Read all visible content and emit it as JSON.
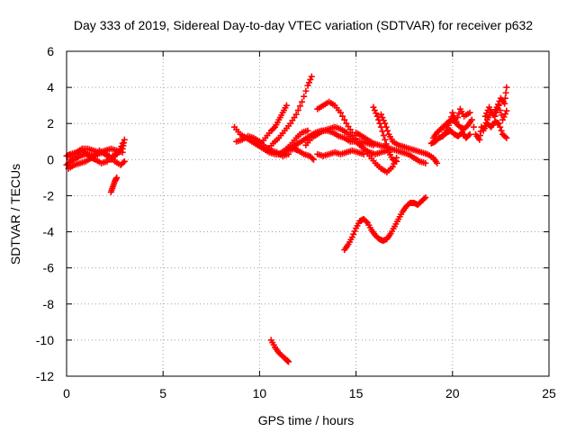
{
  "chart_data": {
    "type": "scatter",
    "title": "Day 333 of 2019, Sidereal Day-to-day VTEC variation (SDTVAR) for receiver p632",
    "xlabel": "GPS time / hours",
    "ylabel": "SDTVAR / TECUs",
    "xlim": [
      0,
      25
    ],
    "ylim": [
      -12,
      6
    ],
    "xticks": [
      0,
      5,
      10,
      15,
      20,
      25
    ],
    "yticks": [
      -12,
      -10,
      -8,
      -6,
      -4,
      -2,
      0,
      2,
      4,
      6
    ],
    "grid": true,
    "marker": "+",
    "color": "#ff0000",
    "tracks": [
      [
        [
          0.0,
          -0.3
        ],
        [
          0.2,
          -0.1
        ],
        [
          0.4,
          0.0
        ],
        [
          0.7,
          0.2
        ],
        [
          1.0,
          0.3
        ],
        [
          1.3,
          0.1
        ],
        [
          1.5,
          0.0
        ],
        [
          1.8,
          -0.2
        ],
        [
          2.1,
          -0.1
        ],
        [
          2.4,
          0.2
        ],
        [
          2.7,
          0.4
        ],
        [
          2.9,
          0.9
        ]
      ],
      [
        [
          0.0,
          0.2
        ],
        [
          0.2,
          0.3
        ],
        [
          0.5,
          0.4
        ],
        [
          0.8,
          0.6
        ],
        [
          1.1,
          0.6
        ],
        [
          1.4,
          0.5
        ],
        [
          1.7,
          0.4
        ],
        [
          2.0,
          0.5
        ],
        [
          2.3,
          0.6
        ],
        [
          2.6,
          0.5
        ],
        [
          2.9,
          0.4
        ]
      ],
      [
        [
          0.1,
          -0.5
        ],
        [
          0.4,
          -0.3
        ],
        [
          0.7,
          -0.2
        ],
        [
          1.0,
          -0.1
        ],
        [
          1.3,
          0.1
        ],
        [
          1.6,
          0.3
        ],
        [
          1.9,
          0.4
        ],
        [
          2.2,
          0.2
        ],
        [
          2.5,
          -0.1
        ],
        [
          2.8,
          -0.3
        ],
        [
          3.0,
          -0.1
        ]
      ],
      [
        [
          0.2,
          0.0
        ],
        [
          0.5,
          0.3
        ],
        [
          0.8,
          0.5
        ],
        [
          1.1,
          0.3
        ],
        [
          1.4,
          0.2
        ],
        [
          1.7,
          0.5
        ],
        [
          2.0,
          0.3
        ],
        [
          2.3,
          0.0
        ],
        [
          2.6,
          0.3
        ],
        [
          2.9,
          0.6
        ],
        [
          3.0,
          1.1
        ]
      ],
      [
        [
          2.3,
          -1.8
        ],
        [
          2.4,
          -1.5
        ],
        [
          2.5,
          -1.2
        ],
        [
          2.6,
          -1.0
        ]
      ],
      [
        [
          8.7,
          1.8
        ],
        [
          9.0,
          1.4
        ],
        [
          9.3,
          1.2
        ],
        [
          9.6,
          1.0
        ],
        [
          9.9,
          0.8
        ],
        [
          10.2,
          0.6
        ],
        [
          10.5,
          0.4
        ],
        [
          10.8,
          0.3
        ],
        [
          11.1,
          0.3
        ],
        [
          11.4,
          0.5
        ]
      ],
      [
        [
          8.8,
          1.0
        ],
        [
          9.1,
          1.1
        ],
        [
          9.4,
          1.3
        ],
        [
          9.7,
          1.2
        ],
        [
          10.0,
          1.0
        ],
        [
          10.3,
          0.7
        ],
        [
          10.6,
          0.5
        ],
        [
          10.9,
          0.4
        ],
        [
          11.2,
          0.2
        ],
        [
          11.5,
          0.3
        ]
      ],
      [
        [
          10.0,
          0.8
        ],
        [
          10.3,
          1.2
        ],
        [
          10.6,
          1.6
        ],
        [
          10.8,
          1.8
        ],
        [
          11.0,
          2.2
        ],
        [
          11.2,
          2.6
        ],
        [
          11.4,
          3.0
        ]
      ],
      [
        [
          10.4,
          0.5
        ],
        [
          10.7,
          0.9
        ],
        [
          11.0,
          1.2
        ],
        [
          11.3,
          1.6
        ],
        [
          11.6,
          2.0
        ],
        [
          11.9,
          2.5
        ],
        [
          12.2,
          3.2
        ],
        [
          12.5,
          4.1
        ],
        [
          12.7,
          4.6
        ]
      ],
      [
        [
          11.0,
          0.3
        ],
        [
          11.3,
          0.5
        ],
        [
          11.6,
          0.8
        ],
        [
          11.9,
          1.2
        ],
        [
          12.2,
          1.5
        ],
        [
          12.5,
          1.6
        ]
      ],
      [
        [
          11.4,
          0.5
        ],
        [
          11.7,
          0.7
        ],
        [
          12.0,
          0.9
        ],
        [
          12.3,
          1.1
        ],
        [
          12.6,
          1.3
        ],
        [
          12.9,
          1.5
        ],
        [
          13.2,
          1.6
        ],
        [
          13.5,
          1.6
        ],
        [
          13.8,
          1.5
        ],
        [
          14.1,
          1.3
        ],
        [
          14.4,
          1.2
        ],
        [
          14.7,
          1.0
        ],
        [
          15.0,
          1.0
        ],
        [
          15.3,
          1.0
        ],
        [
          15.6,
          0.9
        ],
        [
          15.9,
          0.8
        ]
      ],
      [
        [
          11.5,
          0.5
        ],
        [
          11.8,
          0.6
        ],
        [
          12.0,
          0.5
        ],
        [
          12.3,
          0.3
        ],
        [
          12.6,
          0.2
        ],
        [
          12.8,
          0.0
        ]
      ],
      [
        [
          12.4,
          0.8
        ],
        [
          12.7,
          1.2
        ],
        [
          13.0,
          1.4
        ],
        [
          13.3,
          1.6
        ],
        [
          13.6,
          1.7
        ],
        [
          13.9,
          1.8
        ],
        [
          14.2,
          1.7
        ],
        [
          14.5,
          1.5
        ],
        [
          14.8,
          1.2
        ],
        [
          15.1,
          0.9
        ],
        [
          15.4,
          0.6
        ],
        [
          15.7,
          0.4
        ],
        [
          16.0,
          0.3
        ],
        [
          16.3,
          0.4
        ],
        [
          16.6,
          0.5
        ]
      ],
      [
        [
          13.0,
          2.8
        ],
        [
          13.3,
          3.0
        ],
        [
          13.6,
          3.2
        ],
        [
          13.9,
          3.0
        ],
        [
          14.2,
          2.6
        ],
        [
          14.5,
          2.0
        ],
        [
          14.8,
          1.5
        ],
        [
          15.1,
          1.0
        ],
        [
          15.4,
          0.6
        ],
        [
          15.7,
          0.2
        ],
        [
          16.0,
          -0.2
        ],
        [
          16.3,
          -0.5
        ],
        [
          16.6,
          -0.7
        ],
        [
          16.9,
          -0.4
        ],
        [
          17.1,
          0.1
        ]
      ],
      [
        [
          13.0,
          0.3
        ],
        [
          13.3,
          0.2
        ],
        [
          13.6,
          0.3
        ],
        [
          13.9,
          0.4
        ],
        [
          14.2,
          0.3
        ],
        [
          14.5,
          0.4
        ],
        [
          14.8,
          0.5
        ],
        [
          15.1,
          0.4
        ],
        [
          15.4,
          0.3
        ]
      ],
      [
        [
          15.0,
          1.5
        ],
        [
          15.3,
          1.3
        ],
        [
          15.6,
          1.1
        ],
        [
          15.9,
          0.9
        ],
        [
          16.2,
          0.8
        ],
        [
          16.5,
          0.7
        ],
        [
          16.8,
          0.6
        ],
        [
          17.1,
          0.5
        ],
        [
          17.4,
          0.4
        ],
        [
          17.7,
          0.3
        ],
        [
          18.0,
          0.1
        ],
        [
          18.3,
          -0.1
        ],
        [
          18.6,
          -0.2
        ]
      ],
      [
        [
          15.9,
          2.9
        ],
        [
          16.1,
          2.4
        ],
        [
          16.3,
          1.8
        ],
        [
          16.5,
          1.1
        ],
        [
          16.7,
          0.4
        ],
        [
          16.9,
          0.0
        ],
        [
          17.1,
          -0.1
        ]
      ],
      [
        [
          16.3,
          2.5
        ],
        [
          16.5,
          2.0
        ],
        [
          16.7,
          1.4
        ],
        [
          16.9,
          1.0
        ],
        [
          17.2,
          0.8
        ],
        [
          17.5,
          0.7
        ],
        [
          17.8,
          0.6
        ],
        [
          18.1,
          0.5
        ],
        [
          18.4,
          0.4
        ],
        [
          18.7,
          0.3
        ],
        [
          19.0,
          0.1
        ],
        [
          19.2,
          -0.2
        ]
      ],
      [
        [
          14.4,
          -5.0
        ],
        [
          14.6,
          -4.7
        ],
        [
          14.8,
          -4.3
        ],
        [
          15.0,
          -3.8
        ],
        [
          15.2,
          -3.4
        ],
        [
          15.4,
          -3.3
        ],
        [
          15.6,
          -3.5
        ],
        [
          15.8,
          -3.9
        ],
        [
          16.0,
          -4.2
        ],
        [
          16.2,
          -4.4
        ],
        [
          16.4,
          -4.5
        ],
        [
          16.6,
          -4.4
        ],
        [
          16.8,
          -4.1
        ],
        [
          17.0,
          -3.7
        ],
        [
          17.2,
          -3.3
        ],
        [
          17.4,
          -2.9
        ],
        [
          17.6,
          -2.6
        ],
        [
          17.8,
          -2.4
        ],
        [
          18.0,
          -2.4
        ],
        [
          18.2,
          -2.5
        ],
        [
          18.4,
          -2.3
        ],
        [
          18.6,
          -2.1
        ]
      ],
      [
        [
          10.6,
          -10.0
        ],
        [
          10.8,
          -10.4
        ],
        [
          11.0,
          -10.7
        ],
        [
          11.2,
          -10.9
        ],
        [
          11.4,
          -11.1
        ],
        [
          11.5,
          -11.2
        ]
      ],
      [
        [
          19.0,
          1.2
        ],
        [
          19.2,
          1.5
        ],
        [
          19.4,
          1.7
        ],
        [
          19.6,
          1.9
        ],
        [
          19.8,
          2.1
        ],
        [
          20.0,
          2.2
        ],
        [
          20.2,
          2.0
        ],
        [
          20.4,
          1.8
        ],
        [
          20.6,
          1.7
        ],
        [
          20.8,
          1.9
        ],
        [
          21.0,
          2.2
        ]
      ],
      [
        [
          18.9,
          0.9
        ],
        [
          19.1,
          1.0
        ],
        [
          19.3,
          1.2
        ],
        [
          19.5,
          1.3
        ],
        [
          19.7,
          1.5
        ],
        [
          19.9,
          1.6
        ],
        [
          20.1,
          1.4
        ],
        [
          20.3,
          1.3
        ],
        [
          20.5,
          1.5
        ],
        [
          20.7,
          1.2
        ],
        [
          20.9,
          1.4
        ]
      ],
      [
        [
          19.6,
          1.5
        ],
        [
          19.8,
          1.9
        ],
        [
          20.0,
          2.6
        ],
        [
          20.2,
          2.1
        ],
        [
          20.4,
          2.8
        ],
        [
          20.6,
          2.4
        ],
        [
          20.9,
          2.6
        ],
        [
          21.2,
          1.4
        ],
        [
          21.4,
          1.1
        ],
        [
          21.5,
          1.8
        ]
      ],
      [
        [
          21.6,
          1.7
        ],
        [
          21.8,
          2.2
        ],
        [
          22.0,
          2.6
        ],
        [
          22.2,
          2.4
        ],
        [
          22.4,
          3.0
        ],
        [
          22.6,
          2.2
        ],
        [
          22.8,
          2.7
        ]
      ],
      [
        [
          21.6,
          1.6
        ],
        [
          21.8,
          2.0
        ],
        [
          22.0,
          1.8
        ],
        [
          22.2,
          2.1
        ],
        [
          22.4,
          2.0
        ],
        [
          22.6,
          1.4
        ],
        [
          22.8,
          1.2
        ]
      ],
      [
        [
          21.7,
          2.4
        ],
        [
          21.9,
          2.9
        ],
        [
          22.1,
          2.5
        ],
        [
          22.3,
          2.9
        ],
        [
          22.5,
          3.4
        ],
        [
          22.7,
          3.1
        ],
        [
          22.8,
          4.0
        ]
      ]
    ]
  }
}
